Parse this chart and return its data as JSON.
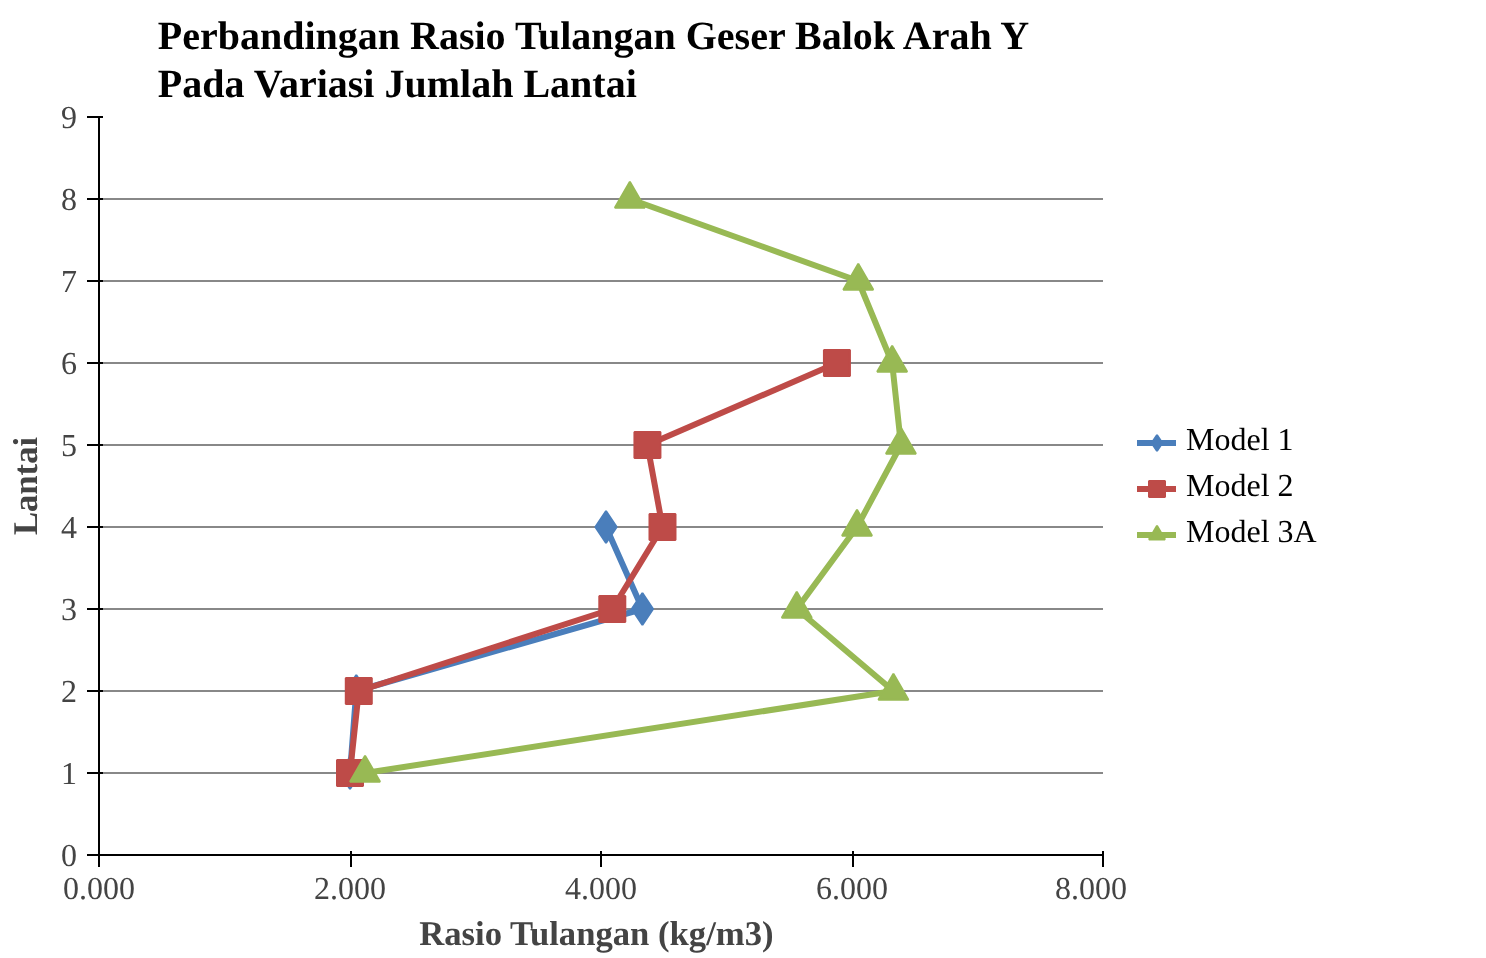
{
  "chart_data": {
    "type": "line",
    "title": "Perbandingan Rasio Tulangan Geser Balok  Arah Y\nPada Variasi Jumlah Lantai",
    "xlabel": "Rasio Tulangan  (kg/m3)",
    "ylabel": "Lantai",
    "xlim": [
      0,
      8
    ],
    "xticks": [
      {
        "value": 0,
        "label": "0.000"
      },
      {
        "value": 2,
        "label": "2.000"
      },
      {
        "value": 4,
        "label": "4.000"
      },
      {
        "value": 6,
        "label": "6.000"
      },
      {
        "value": 8,
        "label": "8.000"
      }
    ],
    "ylim": [
      0,
      9
    ],
    "yticks": [
      0,
      1,
      2,
      3,
      4,
      5,
      6,
      7,
      8,
      9
    ],
    "grid": "y",
    "legend": "right",
    "line_style": "solid",
    "series": [
      {
        "name": "Model 1",
        "color": "#4a7ebb",
        "marker": "diamond",
        "x": [
          2.0,
          2.05,
          4.33,
          4.04
        ],
        "values": [
          1,
          2,
          3,
          4
        ]
      },
      {
        "name": "Model 2",
        "color": "#be4b48",
        "marker": "square",
        "x": [
          2.0,
          2.07,
          4.09,
          4.49,
          4.37,
          5.88
        ],
        "values": [
          1,
          2,
          3,
          4,
          5,
          6
        ]
      },
      {
        "name": "Model 3A",
        "color": "#98b954",
        "marker": "triangle",
        "x": [
          2.12,
          6.33,
          5.56,
          6.04,
          6.39,
          6.32,
          6.05,
          4.23
        ],
        "values": [
          1,
          2,
          3,
          4,
          5,
          6,
          7,
          8
        ]
      }
    ]
  }
}
